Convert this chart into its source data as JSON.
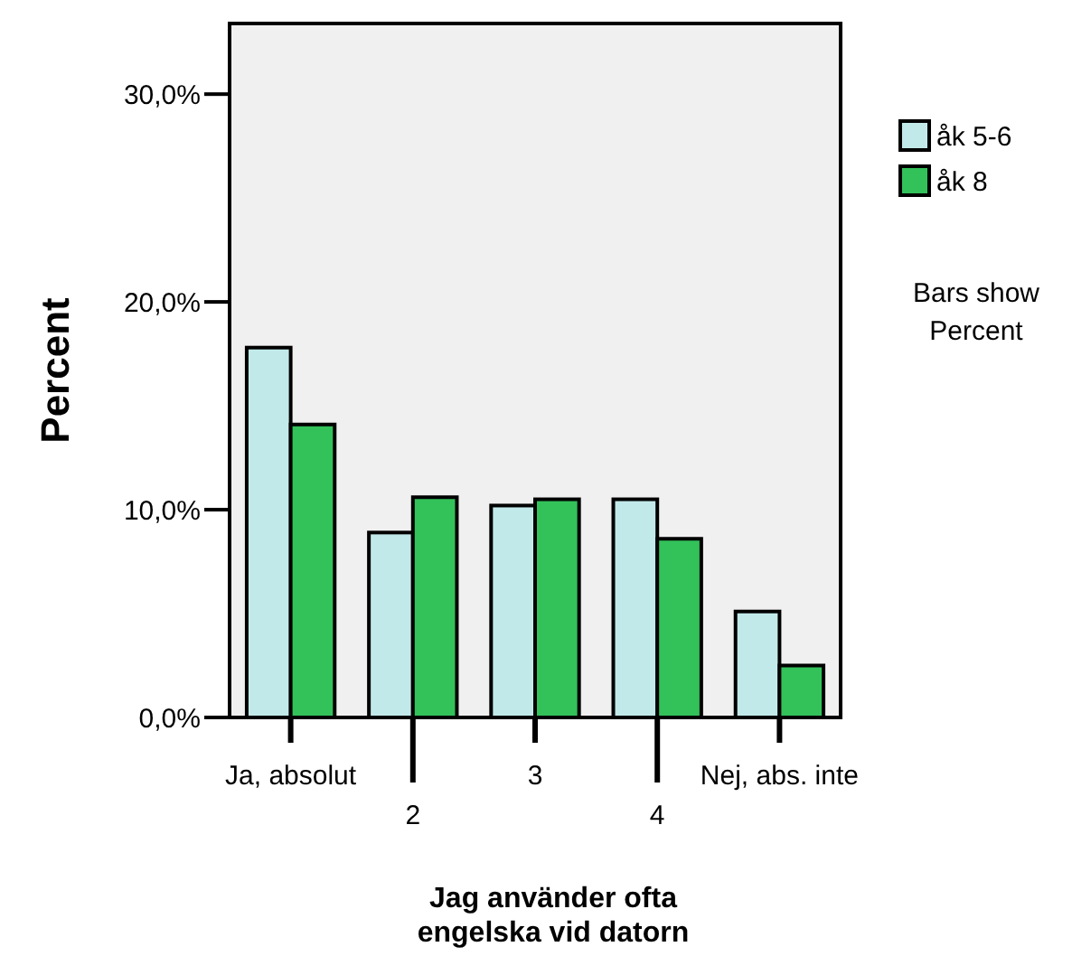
{
  "chart_data": {
    "type": "bar",
    "xlabel": "Jag använder ofta engelska vid datorn",
    "ylabel": "Percent",
    "categories": [
      "Ja, absolut",
      "2",
      "3",
      "4",
      "Nej, abs. inte"
    ],
    "series": [
      {
        "name": "åk 5-6",
        "color": "#c2e9ea",
        "values": [
          17.8,
          8.9,
          10.2,
          10.5,
          5.1
        ]
      },
      {
        "name": "åk 8",
        "color": "#33c15a",
        "values": [
          14.1,
          10.6,
          10.5,
          8.6,
          2.5
        ]
      }
    ],
    "ylim": [
      0,
      33.4
    ],
    "yticks": [
      {
        "value": 0,
        "label": "0,0%"
      },
      {
        "value": 10,
        "label": "10,0%"
      },
      {
        "value": 20,
        "label": "20,0%"
      },
      {
        "value": 30,
        "label": "30,0%"
      }
    ],
    "grid": false,
    "legend": "right",
    "annotations": [
      "Bars show Percent"
    ]
  }
}
